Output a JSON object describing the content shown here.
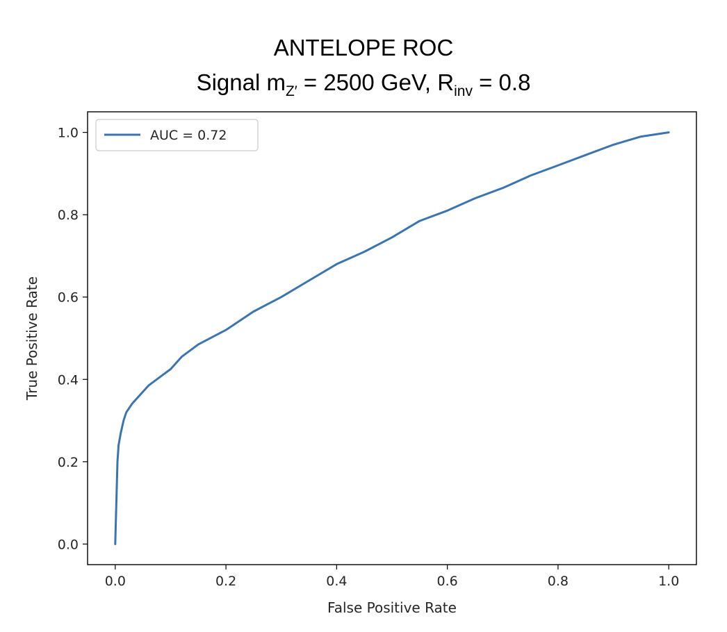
{
  "title": {
    "line1": "ANTELOPE ROC",
    "line2_prefix": "Signal m",
    "line2_sub1": "Z′",
    "line2_middle": " = 2500 GeV, R",
    "line2_sub2": "inv",
    "line2_suffix": "  = 0.8"
  },
  "chart_data": {
    "type": "line",
    "title": "ANTELOPE ROC Signal mZ′ = 2500 GeV, Rinv = 0.8",
    "xlabel": "False Positive Rate",
    "ylabel": "True Positive Rate",
    "xlim": [
      -0.05,
      1.05
    ],
    "ylim": [
      -0.05,
      1.05
    ],
    "xticks": [
      0.0,
      0.2,
      0.4,
      0.6,
      0.8,
      1.0
    ],
    "xtick_labels": [
      "0.0",
      "0.2",
      "0.4",
      "0.6",
      "0.8",
      "1.0"
    ],
    "yticks": [
      0.0,
      0.2,
      0.4,
      0.6,
      0.8,
      1.0
    ],
    "ytick_labels": [
      "0.0",
      "0.2",
      "0.4",
      "0.6",
      "0.8",
      "1.0"
    ],
    "grid": false,
    "legend_position": "top-left",
    "series": [
      {
        "name": "AUC = 0.72",
        "color": "#3a75b0",
        "x": [
          0.0,
          0.002,
          0.004,
          0.006,
          0.01,
          0.015,
          0.02,
          0.03,
          0.04,
          0.05,
          0.06,
          0.08,
          0.1,
          0.12,
          0.15,
          0.2,
          0.25,
          0.3,
          0.35,
          0.4,
          0.45,
          0.5,
          0.55,
          0.6,
          0.65,
          0.7,
          0.75,
          0.8,
          0.85,
          0.9,
          0.95,
          1.0
        ],
        "y": [
          0.0,
          0.1,
          0.2,
          0.24,
          0.27,
          0.3,
          0.32,
          0.34,
          0.355,
          0.37,
          0.385,
          0.405,
          0.425,
          0.455,
          0.485,
          0.52,
          0.565,
          0.6,
          0.64,
          0.68,
          0.71,
          0.745,
          0.785,
          0.81,
          0.84,
          0.865,
          0.895,
          0.92,
          0.945,
          0.97,
          0.99,
          1.0
        ]
      }
    ]
  }
}
